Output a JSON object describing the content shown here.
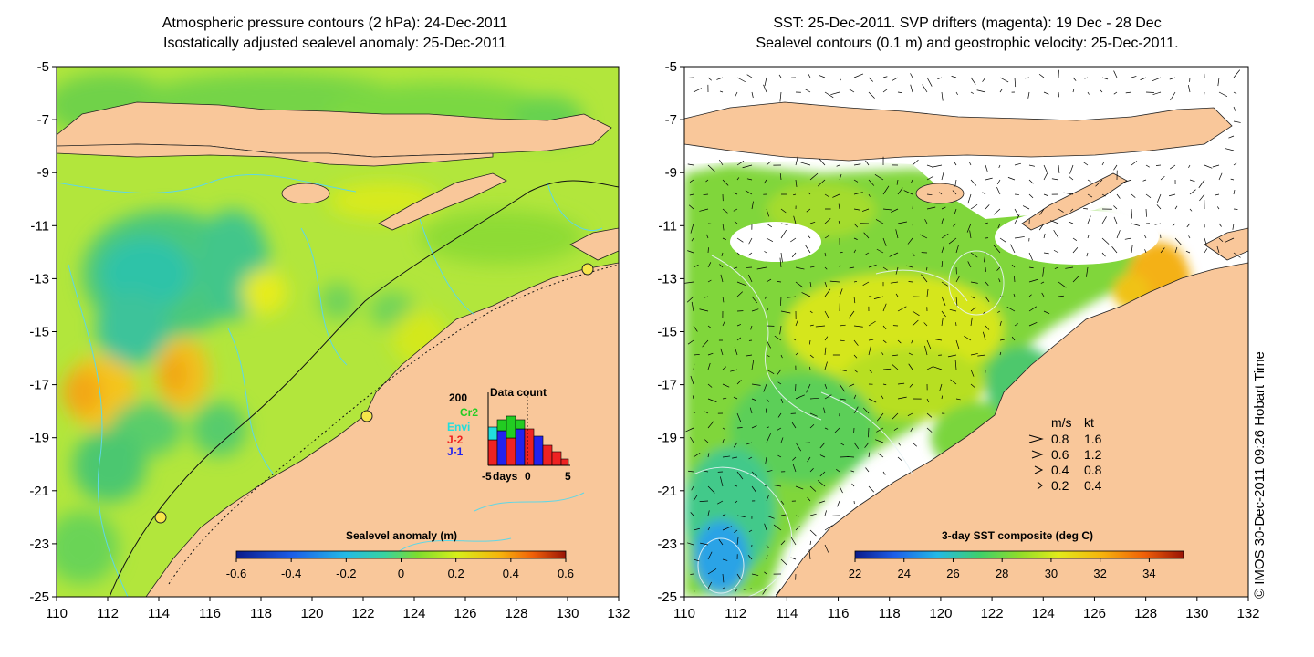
{
  "left_panel": {
    "title_line1": "Atmospheric pressure contours (2 hPa): 24-Dec-2011",
    "title_line2": "Isostatically adjusted sealevel anomaly: 25-Dec-2011",
    "colorbar": {
      "title": "Sealevel anomaly (m)",
      "ticks": [
        "-0.6",
        "-0.4",
        "-0.2",
        "0",
        "0.2",
        "0.4",
        "0.6"
      ],
      "range": [
        -0.6,
        0.6
      ]
    },
    "data_count": {
      "title": "Data count",
      "max_label": "200",
      "xlabel": "days",
      "x_ticks": [
        "-5",
        "0",
        "5"
      ],
      "missions": [
        {
          "name": "Cr2",
          "color": "#22cc22"
        },
        {
          "name": "Envi",
          "color": "#22dddd"
        },
        {
          "name": "J-2",
          "color": "#ee2222"
        },
        {
          "name": "J-1",
          "color": "#2222ee"
        }
      ]
    }
  },
  "right_panel": {
    "title_line1": "SST: 25-Dec-2011. SVP drifters (magenta): 19 Dec - 28 Dec",
    "title_line2": "Sealevel contours (0.1 m) and geostrophic velocity: 25-Dec-2011.",
    "colorbar": {
      "title": "3-day SST composite (deg C)",
      "ticks": [
        "22",
        "24",
        "26",
        "28",
        "30",
        "32",
        "34"
      ],
      "range": [
        22,
        35.4
      ]
    },
    "velocity_legend": {
      "header_ms": "m/s",
      "header_kt": "kt",
      "rows": [
        {
          "ms": "0.8",
          "kt": "1.6"
        },
        {
          "ms": "0.6",
          "kt": "1.2"
        },
        {
          "ms": "0.4",
          "kt": "0.8"
        },
        {
          "ms": "0.2",
          "kt": "0.4"
        }
      ]
    }
  },
  "axes": {
    "lon_ticks": [
      "110",
      "112",
      "114",
      "116",
      "118",
      "120",
      "122",
      "124",
      "126",
      "128",
      "130",
      "132"
    ],
    "lat_ticks": [
      "-5",
      "-7",
      "-9",
      "-11",
      "-13",
      "-15",
      "-17",
      "-19",
      "-21",
      "-23",
      "-25"
    ]
  },
  "credit": "© IMOS 30-Dec-2011 09:26 Hobart Time",
  "colors": {
    "land": "#f9c79a",
    "ocean_base": "#b6ea3a",
    "contour": "#5fd7e6"
  }
}
